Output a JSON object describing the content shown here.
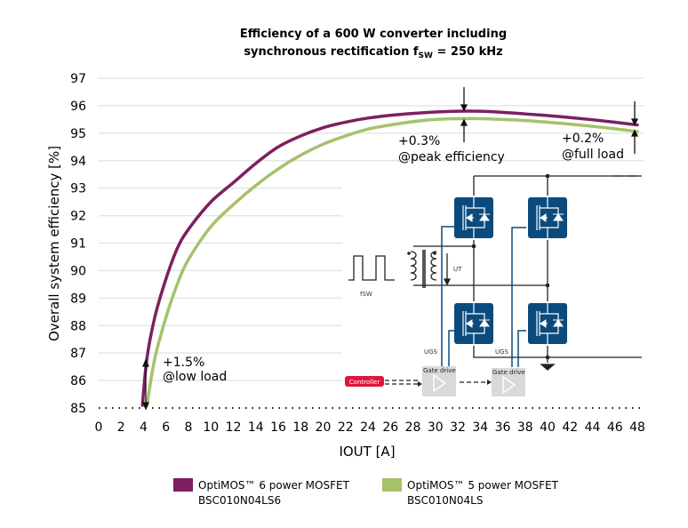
{
  "chart_data": {
    "type": "line",
    "title_line1": "Efficiency of a 600 W converter including",
    "title_line2_prefix": "synchronous rectification f",
    "title_line2_sub": "SW",
    "title_line2_suffix": " = 250 kHz",
    "xlabel": "IOUT [A]",
    "ylabel": "Overall system efficiency [%]",
    "xlim": [
      0,
      48
    ],
    "ylim": [
      85,
      97
    ],
    "xticks": [
      "0",
      "2",
      "4",
      "6",
      "8",
      "10",
      "12",
      "14",
      "16",
      "18",
      "20",
      "22",
      "24",
      "26",
      "28",
      "30",
      "32",
      "34",
      "36",
      "38",
      "40",
      "42",
      "44",
      "46",
      "48"
    ],
    "yticks": [
      "85",
      "86",
      "87",
      "88",
      "89",
      "90",
      "91",
      "92",
      "93",
      "94",
      "95",
      "96",
      "97"
    ],
    "grid": true,
    "legend_placement": "bottom",
    "series": [
      {
        "name": "OptiMOS™ 6 power MOSFET",
        "name_line2": "BSC010N04LS6",
        "color": "#7d1f61",
        "x": [
          3.9,
          4.3,
          5,
          6,
          7,
          8,
          10,
          12,
          14,
          16,
          18,
          20,
          22,
          24,
          26,
          28,
          30,
          32,
          34,
          36,
          38,
          40,
          42,
          44,
          46,
          48
        ],
        "y": [
          85.1,
          86.8,
          88.3,
          89.7,
          90.8,
          91.5,
          92.5,
          93.2,
          93.9,
          94.5,
          94.9,
          95.2,
          95.4,
          95.55,
          95.65,
          95.72,
          95.77,
          95.8,
          95.8,
          95.76,
          95.7,
          95.64,
          95.57,
          95.49,
          95.4,
          95.3
        ]
      },
      {
        "name": "OptiMOS™ 5 power MOSFET",
        "name_line2": "BSC010N04LS",
        "color": "#a5c26a",
        "x": [
          4.3,
          5,
          6,
          7,
          8,
          10,
          12,
          14,
          16,
          18,
          20,
          22,
          24,
          26,
          28,
          30,
          32,
          34,
          36,
          38,
          40,
          42,
          44,
          46,
          48
        ],
        "y": [
          85.1,
          86.8,
          88.3,
          89.5,
          90.4,
          91.6,
          92.4,
          93.1,
          93.7,
          94.2,
          94.6,
          94.9,
          95.15,
          95.3,
          95.42,
          95.5,
          95.53,
          95.53,
          95.5,
          95.46,
          95.4,
          95.33,
          95.25,
          95.16,
          95.06
        ]
      }
    ],
    "annotations": {
      "low_load": [
        "+1.5%",
        "@low load"
      ],
      "peak": [
        "+0.3%",
        "@peak efficiency"
      ],
      "full_load": [
        "+0.2%",
        "@full load"
      ]
    }
  },
  "schematic": {
    "fsw": "fSW",
    "ut": "UT",
    "ugs1": "UGS",
    "ugs2": "UGS",
    "gate_drive1": "Gate drive",
    "gate_drive2": "Gate drive",
    "controller": "Controller",
    "mosfet_color": "#0b4a7d",
    "controller_color": "#e3153c"
  }
}
